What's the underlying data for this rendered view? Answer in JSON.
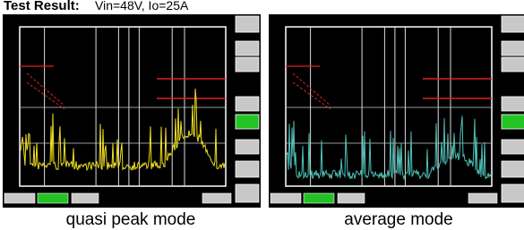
{
  "header": {
    "title": "Test Result:",
    "conditions": "Vin=48V, Io=25A"
  },
  "captions": [
    "quasi peak mode",
    "average mode"
  ]
}
